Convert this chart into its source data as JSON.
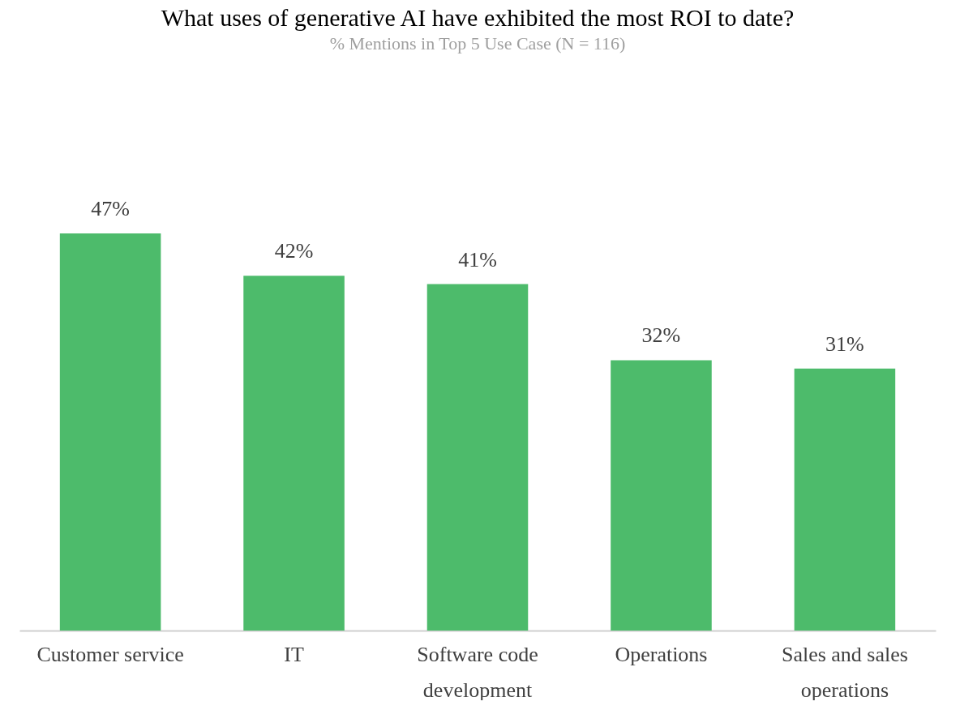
{
  "chart_data": {
    "type": "bar",
    "title": "What uses of generative AI have exhibited the most ROI to date?",
    "subtitle": "% Mentions in Top 5 Use Case (N = 116)",
    "categories": [
      "Customer service",
      "IT",
      "Software code development",
      "Operations",
      "Sales and sales operations"
    ],
    "values": [
      47,
      42,
      41,
      32,
      31
    ],
    "value_labels": [
      "47%",
      "42%",
      "41%",
      "32%",
      "31%"
    ],
    "color": "#4dbb6b"
  }
}
